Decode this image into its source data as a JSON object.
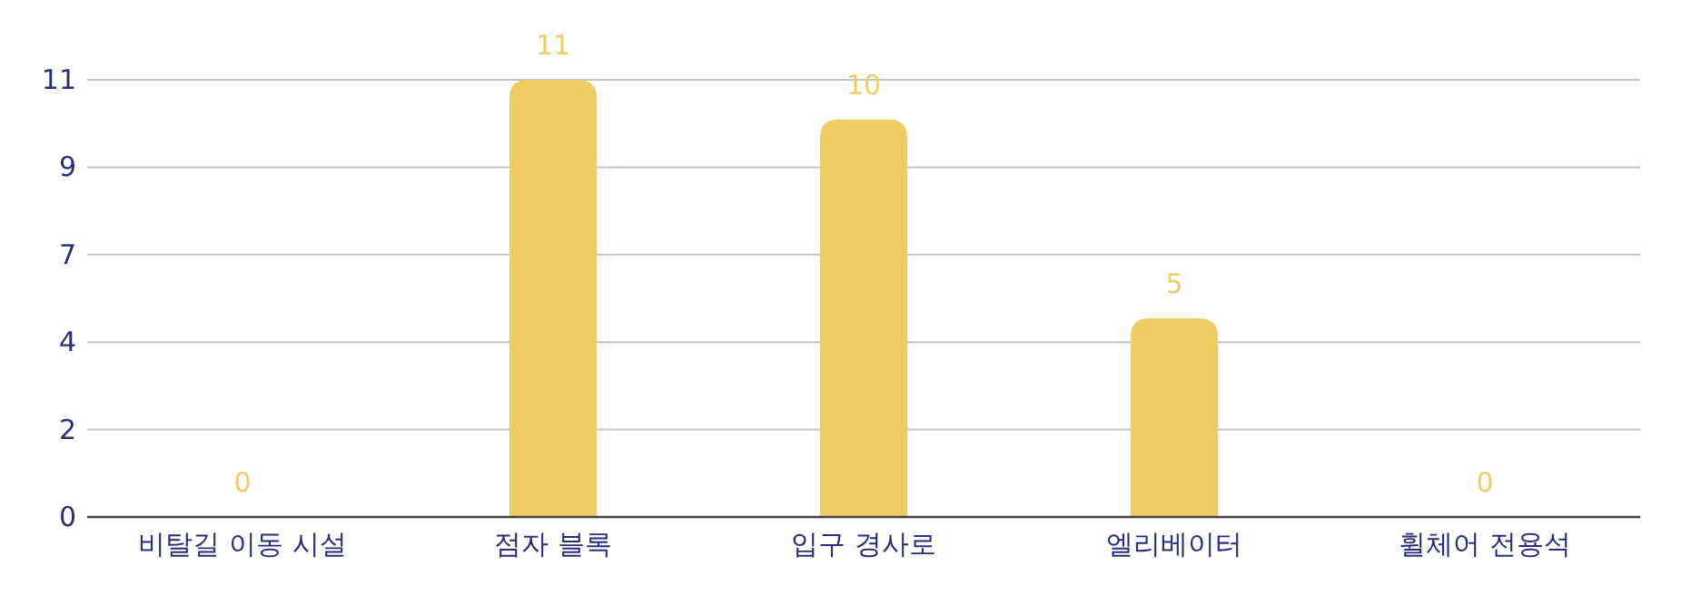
{
  "chart_data": {
    "type": "bar",
    "categories": [
      "비탈길 이동 시설",
      "점자 블록",
      "입구 경사로",
      "엘리베이터",
      "휠체어 전용석"
    ],
    "values": [
      0,
      11,
      10,
      5,
      0
    ],
    "color": "#f0cd64",
    "ylim": [
      0,
      11
    ],
    "yticks": [
      0,
      {
        "value": 2.2,
        "label": "2"
      },
      {
        "value": 4.4,
        "label": "4"
      },
      {
        "value": 6.6,
        "label": "7"
      },
      {
        "value": 8.8,
        "label": "9"
      },
      11
    ],
    "grid": "y",
    "data_labels": true
  }
}
